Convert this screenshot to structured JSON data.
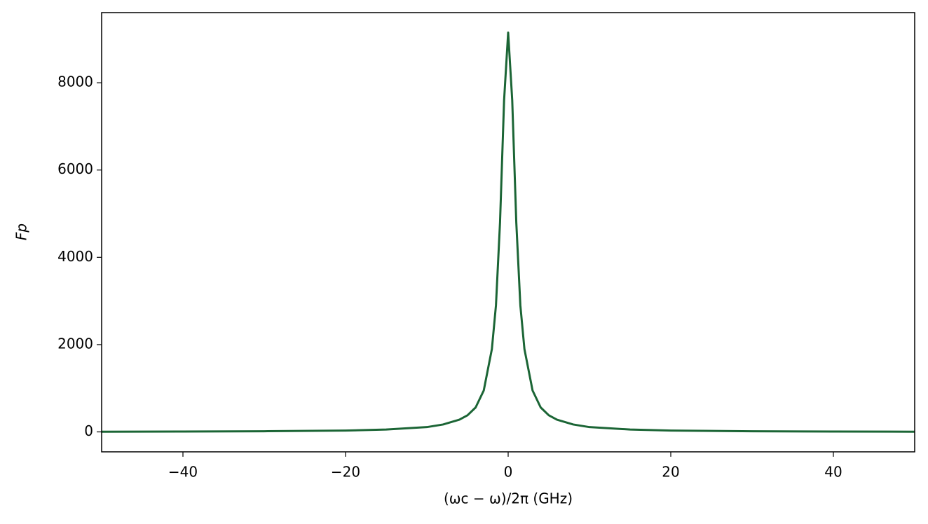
{
  "chart_data": {
    "type": "line",
    "xlabel": "(ωc − ω)/2π (GHz)",
    "ylabel": "Fp",
    "x": [
      -50,
      -40,
      -30,
      -20,
      -15,
      -10,
      -8,
      -6,
      -5,
      -4,
      -3,
      -2,
      -1.5,
      -1,
      -0.5,
      0,
      0.5,
      1,
      1.5,
      2,
      3,
      4,
      5,
      6,
      8,
      10,
      15,
      20,
      30,
      40,
      50
    ],
    "series": [
      {
        "color": "#1b6535",
        "values": [
          5,
          8,
          15,
          30,
          55,
          110,
          170,
          280,
          380,
          560,
          950,
          1900,
          2900,
          4800,
          7600,
          9150,
          7600,
          4800,
          2900,
          1900,
          950,
          560,
          380,
          280,
          170,
          110,
          55,
          30,
          15,
          8,
          5
        ]
      }
    ],
    "xlim": [
      -50,
      50
    ],
    "ylim": [
      -457,
      9607
    ],
    "xticks": [
      {
        "value": -40,
        "label": "−40"
      },
      {
        "value": -20,
        "label": "−20"
      },
      0,
      20,
      40
    ],
    "yticks": [
      0,
      2000,
      4000,
      6000,
      8000
    ],
    "grid": false
  }
}
